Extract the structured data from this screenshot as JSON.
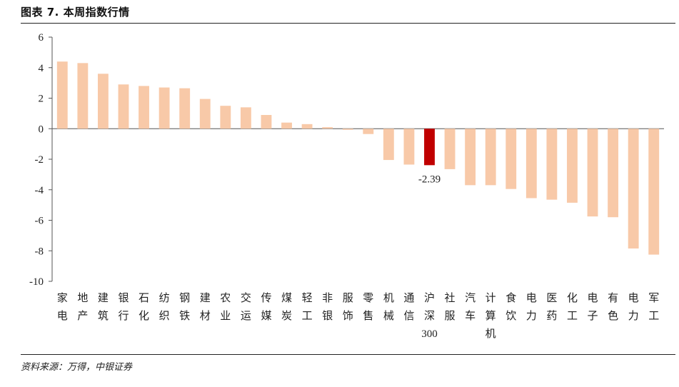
{
  "header": {
    "title": "图表 7. 本周指数行情"
  },
  "footer": {
    "source": "资料来源：万得，中银证券"
  },
  "chart_data": {
    "type": "bar",
    "title": "",
    "xlabel": "",
    "ylabel": "",
    "ylim": [
      -10,
      6
    ],
    "yticks": [
      6,
      4,
      2,
      0,
      -2,
      -4,
      -6,
      -8,
      -10
    ],
    "grid": false,
    "legend": "none",
    "colors": {
      "bar": "#f8c9a8",
      "highlight": "#c00000"
    },
    "highlight_category": "沪深300",
    "categories": [
      "家电",
      "地产",
      "建筑",
      "银行",
      "石化",
      "纺织",
      "钢铁",
      "建材",
      "农业",
      "交运",
      "传媒",
      "煤炭",
      "轻工",
      "非银",
      "服饰",
      "零售",
      "机械",
      "通信",
      "沪深300",
      "社服",
      "汽车",
      "计算机",
      "食饮",
      "电力",
      "医药",
      "化工",
      "电子",
      "有色",
      "电力",
      "军工"
    ],
    "category_lines": [
      [
        "家",
        "电"
      ],
      [
        "地",
        "产"
      ],
      [
        "建",
        "筑"
      ],
      [
        "银",
        "行"
      ],
      [
        "石",
        "化"
      ],
      [
        "纺",
        "织"
      ],
      [
        "钢",
        "铁"
      ],
      [
        "建",
        "材"
      ],
      [
        "农",
        "业"
      ],
      [
        "交",
        "运"
      ],
      [
        "传",
        "媒"
      ],
      [
        "煤",
        "炭"
      ],
      [
        "轻",
        "工"
      ],
      [
        "非",
        "银"
      ],
      [
        "服",
        "饰"
      ],
      [
        "零",
        "售"
      ],
      [
        "机",
        "械"
      ],
      [
        "通",
        "信"
      ],
      [
        "沪",
        "深",
        "300"
      ],
      [
        "社",
        "服"
      ],
      [
        "汽",
        "车"
      ],
      [
        "计",
        "算",
        "机"
      ],
      [
        "食",
        "饮"
      ],
      [
        "电",
        "力"
      ],
      [
        "医",
        "药"
      ],
      [
        "化",
        "工"
      ],
      [
        "电",
        "子"
      ],
      [
        "有",
        "色"
      ],
      [
        "电",
        "力"
      ],
      [
        "军",
        "工"
      ]
    ],
    "values": [
      4.4,
      4.3,
      3.6,
      2.9,
      2.8,
      2.7,
      2.65,
      1.95,
      1.5,
      1.4,
      0.9,
      0.4,
      0.3,
      0.1,
      0.0,
      -0.35,
      -2.05,
      -2.35,
      -2.39,
      -2.65,
      -3.7,
      -3.7,
      -3.95,
      -4.55,
      -4.65,
      -4.85,
      -5.75,
      -5.8,
      -7.85,
      -8.25
    ],
    "data_labels": [
      {
        "category_index": 18,
        "text": "-2.39"
      }
    ]
  }
}
